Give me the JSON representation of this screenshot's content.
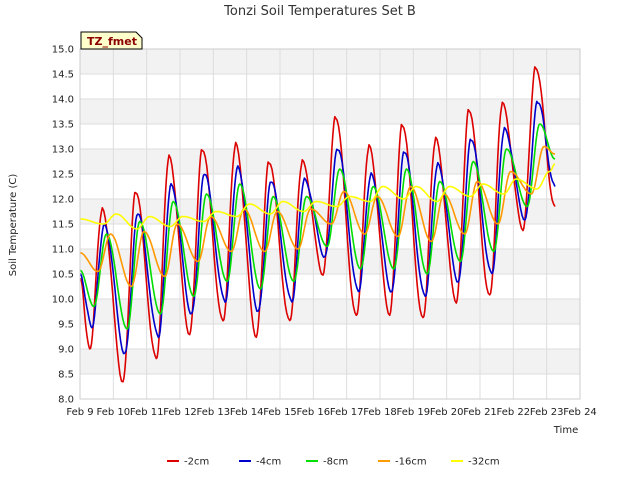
{
  "chart_data": {
    "type": "line",
    "title": "Tonzi Soil Temperatures Set B",
    "xlabel": "Time",
    "ylabel": "Soil Temperature (C)",
    "station_label": "TZ_fmet",
    "ylim": [
      8.0,
      15.0
    ],
    "yticks": [
      "8.0",
      "8.5",
      "9.0",
      "9.5",
      "10.0",
      "10.5",
      "11.0",
      "11.5",
      "12.0",
      "12.5",
      "13.0",
      "13.5",
      "14.0",
      "14.5",
      "15.0"
    ],
    "x_ticks": [
      "Feb 9",
      "Feb 10",
      "Feb 11",
      "Feb 12",
      "Feb 13",
      "Feb 14",
      "Feb 15",
      "Feb 16",
      "Feb 17",
      "Feb 18",
      "Feb 19",
      "Feb 20",
      "Feb 21",
      "Feb 22",
      "Feb 23",
      "Feb 24"
    ],
    "x_start": "2024-02-09",
    "x_end": "2024-02-24",
    "grid": true,
    "legend_position": "bottom",
    "series": [
      {
        "name": "-2cm",
        "color": "#dd0000",
        "min": [
          9.0,
          8.35,
          8.8,
          9.3,
          9.55,
          9.25,
          9.55,
          10.5,
          9.65,
          9.7,
          9.6,
          9.95,
          10.05,
          11.4,
          11.8
        ],
        "max": [
          11.8,
          12.15,
          12.85,
          13.0,
          13.1,
          12.75,
          12.75,
          13.65,
          13.05,
          13.5,
          13.2,
          13.8,
          13.9,
          14.65,
          null
        ],
        "end": 11.85
      },
      {
        "name": "-4cm",
        "color": "#0000cc",
        "min": [
          9.45,
          8.9,
          9.25,
          9.7,
          9.95,
          9.75,
          9.95,
          10.85,
          10.15,
          10.15,
          10.05,
          10.35,
          10.5,
          11.6,
          12.2
        ],
        "max": [
          11.5,
          11.7,
          12.3,
          12.5,
          12.65,
          12.35,
          12.4,
          13.0,
          12.5,
          12.95,
          12.7,
          13.2,
          13.4,
          13.95,
          null
        ],
        "end": 12.25
      },
      {
        "name": "-8cm",
        "color": "#00dd00",
        "min": [
          9.85,
          9.4,
          9.7,
          10.05,
          10.35,
          10.2,
          10.35,
          11.05,
          10.6,
          10.6,
          10.5,
          10.75,
          10.95,
          11.85,
          12.4
        ],
        "max": [
          11.3,
          11.55,
          11.95,
          12.1,
          12.3,
          12.05,
          12.05,
          12.6,
          12.25,
          12.6,
          12.35,
          12.75,
          13.0,
          13.5,
          null
        ],
        "end": 12.8
      },
      {
        "name": "-16cm",
        "color": "#ff9900",
        "min": [
          10.55,
          10.25,
          10.45,
          10.75,
          10.95,
          10.95,
          11.0,
          11.5,
          11.3,
          11.25,
          11.15,
          11.3,
          11.5,
          12.1,
          12.7
        ],
        "max": [
          11.3,
          11.35,
          11.5,
          11.65,
          11.8,
          11.75,
          11.8,
          12.15,
          12.05,
          12.25,
          12.1,
          12.35,
          12.55,
          13.05,
          null
        ],
        "end": 12.9
      },
      {
        "name": "-32cm",
        "color": "#ffff00",
        "min": [
          11.5,
          11.4,
          11.45,
          11.55,
          11.65,
          11.7,
          11.75,
          11.85,
          11.95,
          12.0,
          11.95,
          12.05,
          12.1,
          12.2,
          12.45
        ],
        "max": [
          11.7,
          11.65,
          11.65,
          11.75,
          11.9,
          11.95,
          11.95,
          12.05,
          12.25,
          12.25,
          12.25,
          12.3,
          12.4,
          12.55,
          null
        ],
        "end": 12.7
      }
    ]
  }
}
